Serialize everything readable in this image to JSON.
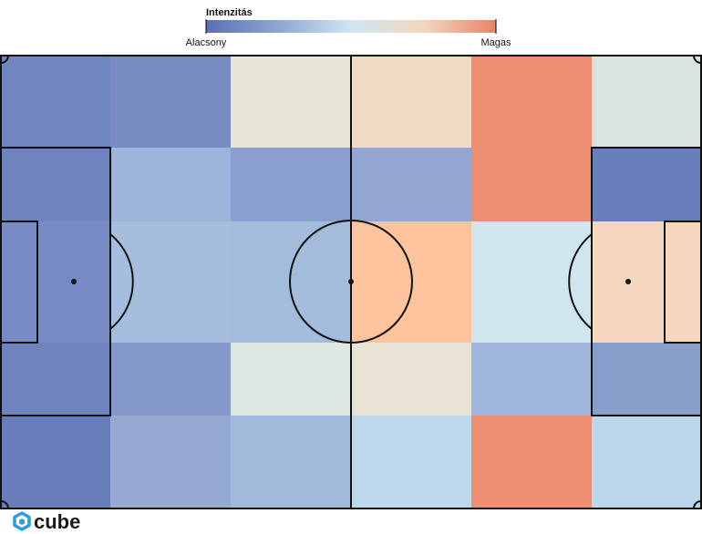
{
  "chart_data": {
    "type": "heatmap",
    "legend": {
      "title": "Intenzitás",
      "low_label": "Alacsony",
      "high_label": "Magas",
      "gradient_colors": [
        "#5b70b5",
        "#8fa6d2",
        "#cfe6f2",
        "#f3d7bd",
        "#e8836a"
      ]
    },
    "columns": 6,
    "rows": 5,
    "cell_colors": [
      [
        "#7086c1",
        "#788cc2",
        "#e8e5d8",
        "#efdbc3",
        "#ee8e73",
        "#dbe3df"
      ],
      [
        "#6f83bf",
        "#9db3d9",
        "#8b9fcf",
        "#93a6d3",
        "#ee8e73",
        "#687ebb"
      ],
      [
        "#778ac4",
        "#a6bedd",
        "#a4bcdc",
        "#fcc39c",
        "#d0e6ee",
        "#f4d7bd"
      ],
      [
        "#6f83bf",
        "#8498c9",
        "#dfe7e3",
        "#e8e3d5",
        "#9fb5da",
        "#889dca"
      ],
      [
        "#687ebb",
        "#95a9d3",
        "#a1badb",
        "#bcd9ec",
        "#ee8e73",
        "#b9d6ea"
      ]
    ],
    "relative_intensity": [
      [
        0.1,
        0.12,
        0.55,
        0.62,
        0.92,
        0.48
      ],
      [
        0.1,
        0.25,
        0.18,
        0.2,
        0.92,
        0.06
      ],
      [
        0.12,
        0.3,
        0.29,
        0.78,
        0.42,
        0.64
      ],
      [
        0.1,
        0.15,
        0.47,
        0.53,
        0.27,
        0.16
      ],
      [
        0.06,
        0.22,
        0.28,
        0.36,
        0.92,
        0.36
      ]
    ]
  },
  "branding": {
    "logo_text": "cube",
    "logo_color": "#2f9be0"
  }
}
